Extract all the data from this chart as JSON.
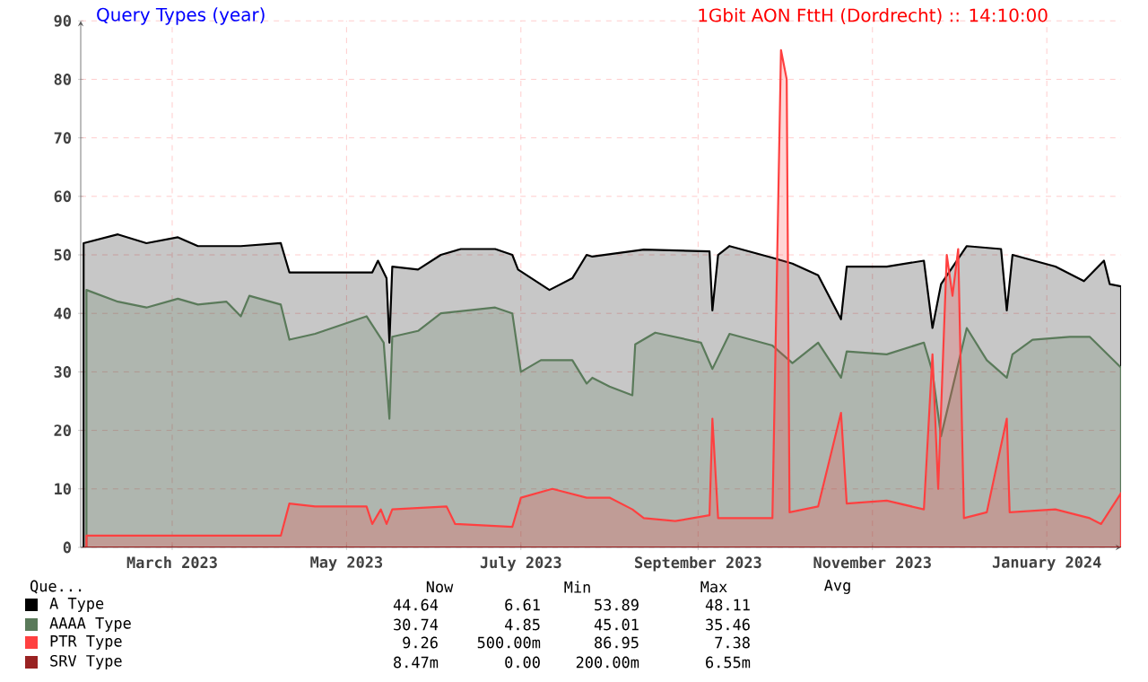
{
  "chart_data": {
    "type": "area",
    "title": "Query Types (year)",
    "subtitle": "1Gbit AON FttH (Dordrecht) ::  14:10:00",
    "legend_title": "Que...",
    "xlim": [
      "2023-01-28",
      "2024-01-27"
    ],
    "xticks": [
      {
        "value": "2023-03-01",
        "label": "March 2023"
      },
      {
        "value": "2023-05-01",
        "label": "May 2023"
      },
      {
        "value": "2023-07-01",
        "label": "July 2023"
      },
      {
        "value": "2023-09-01",
        "label": "September 2023"
      },
      {
        "value": "2023-11-01",
        "label": "November 2023"
      },
      {
        "value": "2024-01-01",
        "label": "January 2024"
      }
    ],
    "ylim": [
      0,
      90
    ],
    "yticks": [
      0,
      10,
      20,
      30,
      40,
      50,
      60,
      70,
      80,
      90
    ],
    "grid": true,
    "legend": "bottom",
    "series": [
      {
        "name": "A Type",
        "color": "#000000",
        "x": [
          "2023-01-29",
          "2023-02-10",
          "2023-02-20",
          "2023-03-03",
          "2023-03-10",
          "2023-03-25",
          "2023-04-08",
          "2023-04-11",
          "2023-04-25",
          "2023-05-10",
          "2023-05-12",
          "2023-05-15",
          "2023-05-16",
          "2023-05-17",
          "2023-05-26",
          "2023-06-03",
          "2023-06-10",
          "2023-06-22",
          "2023-06-28",
          "2023-06-30",
          "2023-07-11",
          "2023-07-19",
          "2023-07-24",
          "2023-07-26",
          "2023-08-13",
          "2023-09-05",
          "2023-09-06",
          "2023-09-08",
          "2023-09-12",
          "2023-09-27",
          "2023-09-29",
          "2023-10-01",
          "2023-10-04",
          "2023-10-13",
          "2023-10-21",
          "2023-10-23",
          "2023-11-06",
          "2023-11-19",
          "2023-11-22",
          "2023-11-25",
          "2023-11-28",
          "2023-12-01",
          "2023-12-04",
          "2023-12-16",
          "2023-12-18",
          "2023-12-20",
          "2024-01-04",
          "2024-01-14",
          "2024-01-21",
          "2024-01-23",
          "2024-01-27"
        ],
        "values": [
          52,
          53.5,
          52,
          53,
          51.5,
          51.5,
          52,
          47,
          47,
          47,
          49,
          46,
          35,
          48,
          47.5,
          50,
          51,
          51,
          50,
          47.5,
          44,
          46,
          50,
          49.7,
          50.9,
          50.6,
          40.5,
          50,
          51.5,
          49.5,
          null,
          null,
          48.5,
          46.5,
          39,
          48,
          48,
          49,
          37.5,
          45,
          null,
          null,
          51.5,
          51,
          40.5,
          50,
          48,
          45.5,
          49,
          45,
          44.6
        ]
      },
      {
        "name": "AAAA Type",
        "color": "#5a7a5a",
        "x": [
          "2023-01-30",
          "2023-02-10",
          "2023-02-20",
          "2023-03-03",
          "2023-03-10",
          "2023-03-20",
          "2023-03-25",
          "2023-03-28",
          "2023-04-08",
          "2023-04-11",
          "2023-04-20",
          "2023-05-08",
          "2023-05-14",
          "2023-05-16",
          "2023-05-17",
          "2023-05-26",
          "2023-06-03",
          "2023-06-22",
          "2023-06-28",
          "2023-07-01",
          "2023-07-08",
          "2023-07-19",
          "2023-07-24",
          "2023-07-26",
          "2023-08-01",
          "2023-08-09",
          "2023-08-10",
          "2023-08-17",
          "2023-09-02",
          "2023-09-06",
          "2023-09-12",
          "2023-09-27",
          "2023-09-29",
          "2023-10-01",
          "2023-10-04",
          "2023-10-13",
          "2023-10-21",
          "2023-10-23",
          "2023-11-06",
          "2023-11-19",
          "2023-11-22",
          "2023-11-25",
          "2023-12-01",
          "2023-12-04",
          "2023-12-11",
          "2023-12-18",
          "2023-12-20",
          "2023-12-27",
          "2024-01-09",
          "2024-01-16",
          "2024-01-27"
        ],
        "values": [
          44,
          42,
          41,
          42.5,
          41.5,
          42,
          39.5,
          43,
          41.5,
          35.5,
          36.5,
          39.5,
          35,
          22,
          36,
          37,
          40,
          41,
          40,
          30,
          32,
          32,
          28,
          29,
          27.5,
          26,
          34.7,
          36.7,
          35,
          30.5,
          36.5,
          34.5,
          null,
          null,
          31.5,
          35,
          29,
          33.5,
          33,
          35,
          30,
          19,
          null,
          37.5,
          32,
          29,
          33,
          35.5,
          36,
          36,
          30.7
        ]
      },
      {
        "name": "PTR Type",
        "color": "#ff4040",
        "x": [
          "2023-01-30",
          "2023-03-03",
          "2023-04-08",
          "2023-04-11",
          "2023-04-20",
          "2023-05-08",
          "2023-05-10",
          "2023-05-13",
          "2023-05-15",
          "2023-05-17",
          "2023-06-05",
          "2023-06-08",
          "2023-06-28",
          "2023-07-01",
          "2023-07-12",
          "2023-07-24",
          "2023-08-01",
          "2023-08-09",
          "2023-08-13",
          "2023-08-24",
          "2023-09-05",
          "2023-09-06",
          "2023-09-08",
          "2023-09-27",
          "2023-09-30",
          "2023-10-02",
          "2023-10-03",
          "2023-10-13",
          "2023-10-21",
          "2023-10-23",
          "2023-11-06",
          "2023-11-19",
          "2023-11-22",
          "2023-11-24",
          "2023-11-27",
          "2023-11-29",
          "2023-12-01",
          "2023-12-03",
          "2023-12-11",
          "2023-12-18",
          "2023-12-19",
          "2024-01-04",
          "2024-01-16",
          "2024-01-20",
          "2024-01-27"
        ],
        "values": [
          2,
          2,
          2,
          7.5,
          7,
          7,
          4,
          6.5,
          4,
          6.5,
          7,
          4,
          3.5,
          8.5,
          10,
          8.5,
          8.5,
          6.5,
          5,
          4.5,
          5.5,
          22,
          5,
          5,
          85,
          80,
          6,
          7,
          23,
          7.5,
          8,
          6.5,
          33,
          10,
          50,
          43,
          51,
          5,
          6,
          22,
          6,
          6.5,
          5,
          4,
          9.3
        ]
      },
      {
        "name": "SRV Type",
        "type": "line",
        "color": "#992222",
        "x": [
          "2023-01-29",
          "2024-01-27"
        ],
        "values": [
          0,
          0
        ]
      }
    ],
    "annotations": [
      "Now",
      "Min",
      "Max",
      "Avg",
      "44.64",
      "6.61",
      "53.89",
      "48.11",
      "30.74",
      "4.85",
      "45.01",
      "35.46",
      "9.26",
      "500.00m",
      "86.95",
      "7.38",
      "8.47m",
      "0.00",
      "200.00m",
      "6.55m"
    ]
  }
}
